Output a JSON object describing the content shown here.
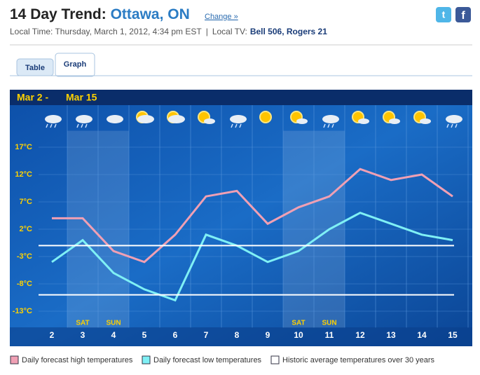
{
  "header": {
    "title": "14 Day Trend:",
    "location": "Ottawa, ON",
    "change_link": "Change »",
    "local_time": "Local Time: Thursday, March 1, 2012, 4:34 pm EST",
    "separator": "|",
    "local_tv_label": "Local TV:",
    "local_tv": "Bell 506, Rogers 21"
  },
  "tabs": [
    "Table",
    "Graph"
  ],
  "chart_data": {
    "type": "line",
    "title": "Mar 2 -",
    "title_end": "Mar 15",
    "categories": [
      2,
      3,
      4,
      5,
      6,
      7,
      8,
      9,
      10,
      11,
      12,
      13,
      14,
      15
    ],
    "day_labels": [
      null,
      "SAT",
      "SUN",
      null,
      null,
      null,
      null,
      null,
      "SAT",
      "SUN",
      null,
      null,
      null,
      null
    ],
    "series": [
      {
        "name": "Daily forecast high temperatures",
        "color": "#f0a0b4",
        "values": [
          4,
          4,
          -2,
          -4,
          1,
          8,
          9,
          3,
          6,
          8,
          13,
          11,
          12,
          8
        ]
      },
      {
        "name": "Daily forecast low temperatures",
        "color": "#7ff0f5",
        "values": [
          -4,
          0,
          -6,
          -9,
          -11,
          1,
          -1,
          -4,
          -2,
          2,
          5,
          3,
          1,
          0
        ]
      },
      {
        "name": "Historic average temperatures over 30 years",
        "color": "#ffffff",
        "levels": [
          -1,
          -10
        ]
      }
    ],
    "ylim": [
      -16,
      20
    ],
    "yticks": [
      {
        "value": 17,
        "label": "17°C"
      },
      {
        "value": 12,
        "label": "12°C"
      },
      {
        "value": 7,
        "label": "7°C"
      },
      {
        "value": 2,
        "label": "2°C"
      },
      {
        "value": -3,
        "label": "-3°C"
      },
      {
        "value": -8,
        "label": "-8°C"
      },
      {
        "value": -13,
        "label": "-13°C"
      }
    ],
    "grid": true
  }
}
